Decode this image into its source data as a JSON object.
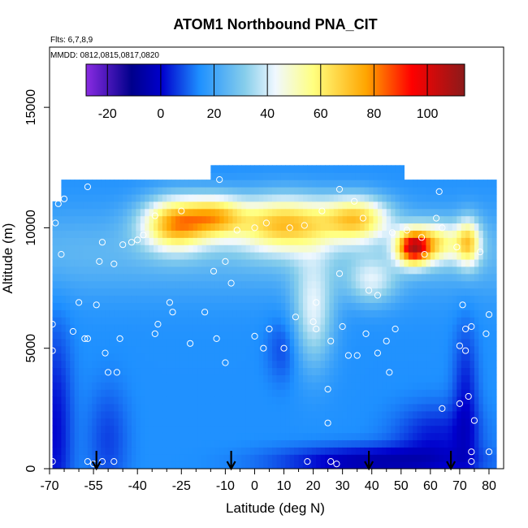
{
  "chart_data": {
    "type": "heatmap",
    "title": "ATOM1 Northbound PNA_CIT",
    "flights_note": "Flts: 6,7,8,9",
    "dates_note": "MMDD: 0812,0815,0817,0820",
    "xlabel": "Latitude (deg N)",
    "ylabel": "Altitude (m)",
    "xlim": [
      -70,
      85
    ],
    "ylim": [
      0,
      17500
    ],
    "x_ticks": [
      -70,
      -55,
      -40,
      -25,
      -10,
      0,
      10,
      20,
      30,
      40,
      50,
      60,
      70,
      80
    ],
    "x_tick_labels": [
      "-70",
      "-55",
      "-40",
      "-25",
      "-10",
      "0",
      "10",
      "20",
      "30",
      "40",
      "50",
      "60",
      "70",
      "80"
    ],
    "x_minor_ticks": [
      -65,
      -60,
      -50,
      -45,
      -35,
      -30,
      -20,
      -15,
      -5,
      5,
      15,
      25,
      35,
      45,
      55,
      65,
      75
    ],
    "y_ticks": [
      0,
      5000,
      10000,
      15000
    ],
    "y_tick_labels": [
      "0",
      "5000",
      "10000",
      "15000"
    ],
    "colorbar": {
      "range": [
        -28,
        114
      ],
      "ticks": [
        -20,
        0,
        20,
        40,
        60,
        80,
        100
      ],
      "tick_labels": [
        "-20",
        "0",
        "20",
        "40",
        "60",
        "80",
        "100"
      ],
      "colors": [
        "#8a2be2",
        "#00008b",
        "#0000cd",
        "#1e90ff",
        "#87ceeb",
        "#f0f8ff",
        "#ffff80",
        "#ffa500",
        "#ff0000",
        "#8b1a1a"
      ]
    },
    "flight_arrows_latitude": [
      -54,
      -8,
      39,
      67
    ],
    "observation_points": [
      [
        -69,
        300
      ],
      [
        -57,
        300
      ],
      [
        -55,
        200
      ],
      [
        -52,
        300
      ],
      [
        -48,
        300
      ],
      [
        -69,
        4900
      ],
      [
        -69,
        6000
      ],
      [
        -62,
        5700
      ],
      [
        -60,
        6900
      ],
      [
        -58,
        5400
      ],
      [
        -57,
        5400
      ],
      [
        -54,
        6800
      ],
      [
        -53,
        8600
      ],
      [
        -51,
        4800
      ],
      [
        -50,
        4000
      ],
      [
        -47,
        4000
      ],
      [
        -46,
        5400
      ],
      [
        -48,
        8500
      ],
      [
        -34,
        5600
      ],
      [
        -33,
        6000
      ],
      [
        -29,
        6900
      ],
      [
        -28,
        6500
      ],
      [
        -22,
        5200
      ],
      [
        -17,
        6500
      ],
      [
        -13,
        5400
      ],
      [
        -10,
        4400
      ],
      [
        -8,
        7700
      ],
      [
        -68,
        10200
      ],
      [
        -67,
        11000
      ],
      [
        -65,
        11200
      ],
      [
        -57,
        11700
      ],
      [
        -45,
        9300
      ],
      [
        -42,
        9400
      ],
      [
        -40,
        9500
      ],
      [
        -38,
        9700
      ],
      [
        -34,
        10500
      ],
      [
        -25,
        10700
      ],
      [
        -12,
        12000
      ],
      [
        -6,
        9900
      ],
      [
        0,
        10000
      ],
      [
        -14,
        8200
      ],
      [
        -10,
        8600
      ],
      [
        5,
        5800
      ],
      [
        0,
        5500
      ],
      [
        3,
        5000
      ],
      [
        10,
        5000
      ],
      [
        14,
        6300
      ],
      [
        20,
        6100
      ],
      [
        21,
        5800
      ],
      [
        26,
        5300
      ],
      [
        30,
        5900
      ],
      [
        32,
        4700
      ],
      [
        35,
        4700
      ],
      [
        38,
        5600
      ],
      [
        42,
        4800
      ],
      [
        45,
        5300
      ],
      [
        48,
        5800
      ],
      [
        46,
        4000
      ],
      [
        42,
        7200
      ],
      [
        39,
        7400
      ],
      [
        29,
        8100
      ],
      [
        21,
        6900
      ],
      [
        23,
        10700
      ],
      [
        29,
        11600
      ],
      [
        37,
        10400
      ],
      [
        47,
        9800
      ],
      [
        52,
        9900
      ],
      [
        57,
        9600
      ],
      [
        58,
        8900
      ],
      [
        62,
        10400
      ],
      [
        63,
        11500
      ],
      [
        64,
        10000
      ],
      [
        69,
        9200
      ],
      [
        71,
        6800
      ],
      [
        72,
        5800
      ],
      [
        74,
        5900
      ],
      [
        70,
        5100
      ],
      [
        72,
        4900
      ],
      [
        73,
        3000
      ],
      [
        75,
        2000
      ],
      [
        70,
        2700
      ],
      [
        64,
        2500
      ],
      [
        74,
        700
      ],
      [
        80,
        700
      ],
      [
        77,
        9000
      ],
      [
        80,
        6400
      ],
      [
        79,
        5600
      ],
      [
        34,
        11100
      ],
      [
        12,
        10000
      ],
      [
        17,
        10100
      ],
      [
        4,
        10200
      ],
      [
        -52,
        9400
      ],
      [
        25,
        3300
      ],
      [
        25,
        1900
      ],
      [
        18,
        300
      ],
      [
        26,
        300
      ],
      [
        28,
        200
      ],
      [
        74,
        300
      ],
      [
        -66,
        8900
      ]
    ]
  }
}
